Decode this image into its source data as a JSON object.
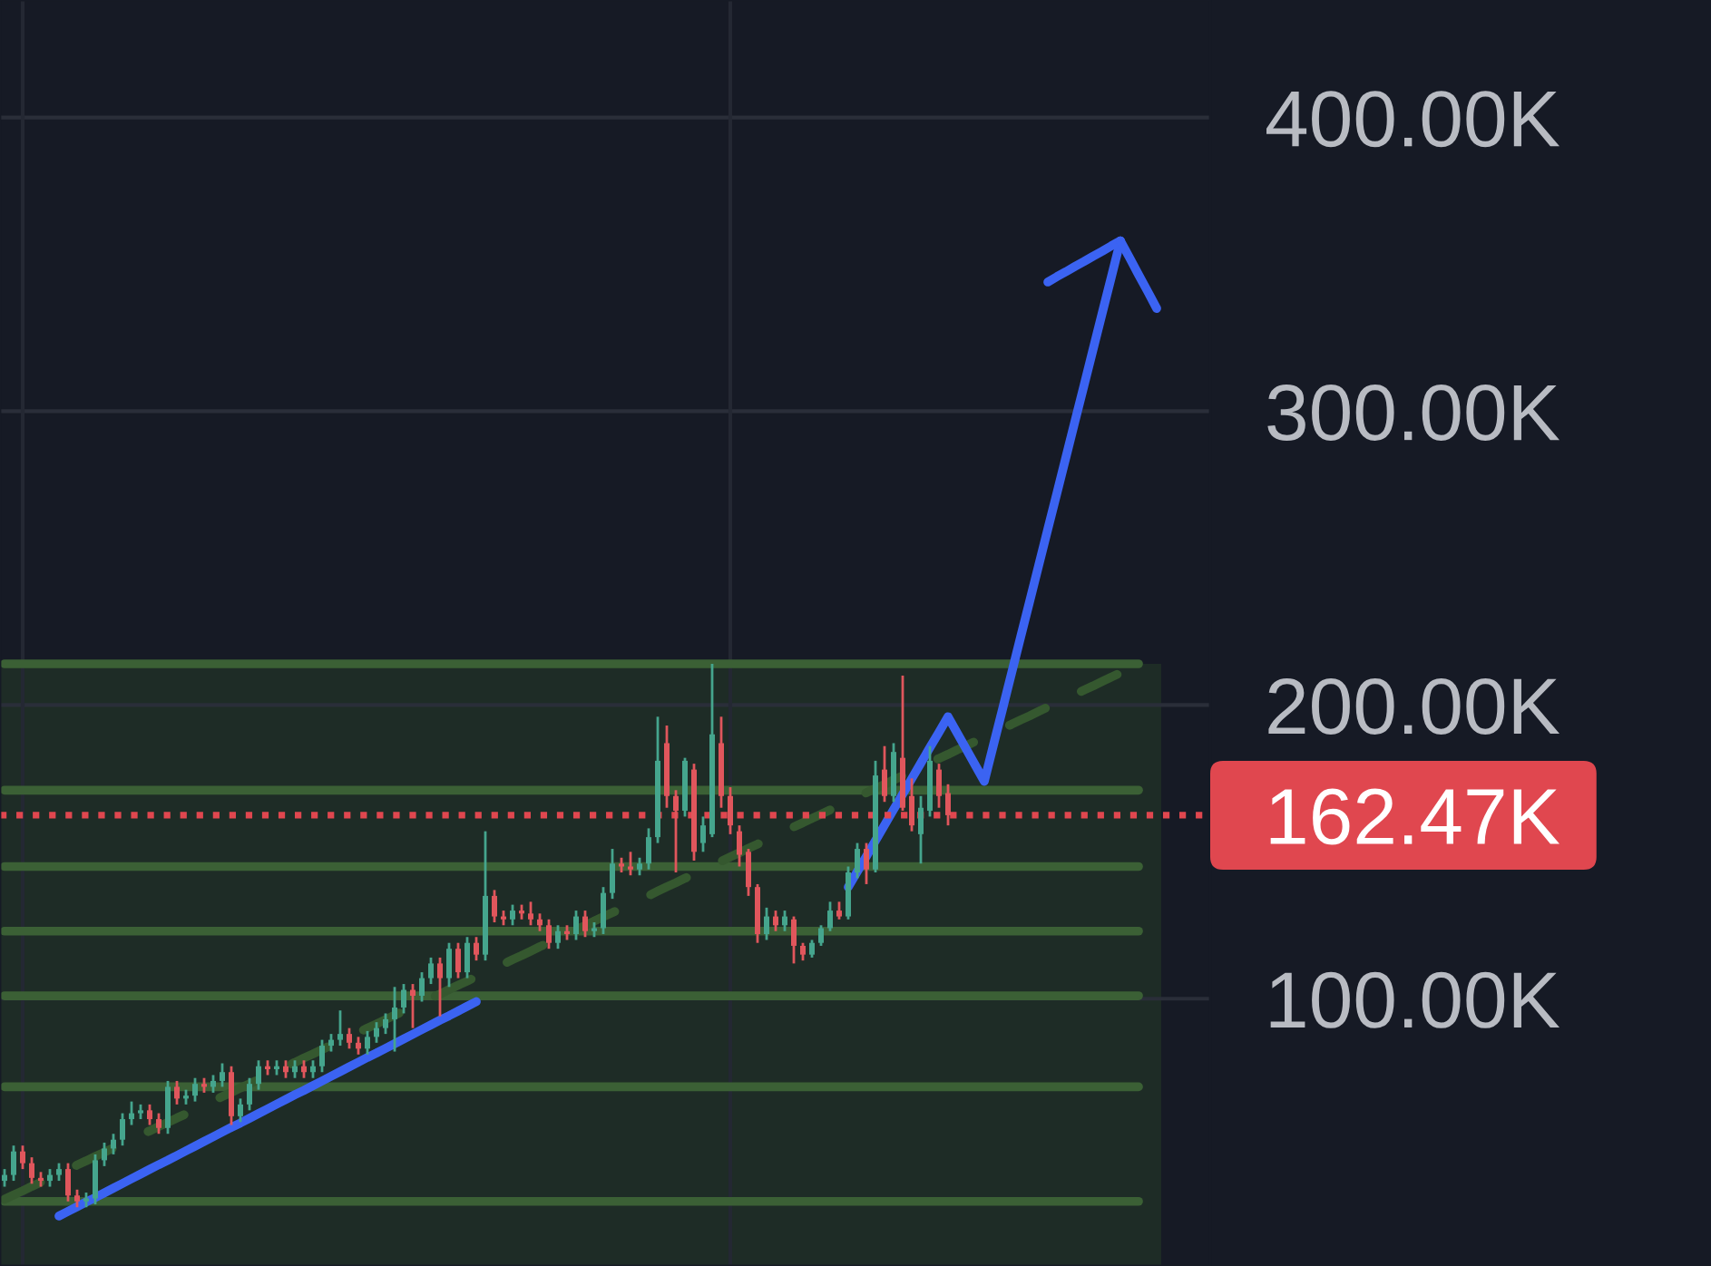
{
  "chart_data": {
    "type": "candlestick",
    "categories": [
      null,
      null,
      null,
      null,
      null,
      null,
      null,
      null,
      null,
      null,
      null,
      null,
      null,
      null,
      null,
      null,
      null,
      null,
      null,
      null,
      null,
      null,
      null,
      null,
      null,
      null,
      null,
      null,
      null,
      null,
      null,
      null,
      null,
      null,
      null,
      null,
      null,
      null,
      null,
      null,
      null,
      null,
      null,
      null,
      null,
      null,
      null,
      null,
      null,
      null,
      null,
      null,
      null,
      null,
      null,
      null,
      null,
      null,
      null,
      null,
      null,
      null,
      null,
      null,
      null,
      null,
      null,
      null,
      null,
      null,
      null,
      null,
      null,
      null,
      null,
      null,
      null,
      null,
      null,
      null,
      null,
      null,
      null,
      null,
      null,
      null,
      null,
      null,
      null,
      null,
      null,
      null,
      null,
      null,
      null,
      null,
      null,
      null,
      null,
      null,
      null,
      null,
      null,
      null,
      null,
      null,
      null,
      null,
      null,
      null,
      null,
      null,
      null,
      null,
      null,
      null,
      null,
      null,
      null,
      null,
      null,
      null,
      null,
      null,
      null,
      null,
      null,
      null
    ],
    "ohlc": [
      [
        38,
        42,
        36,
        40
      ],
      [
        40,
        50,
        38,
        48
      ],
      [
        48,
        50,
        42,
        44
      ],
      [
        44,
        46,
        37,
        39
      ],
      [
        39,
        41,
        36,
        38
      ],
      [
        38,
        42,
        36,
        40
      ],
      [
        40,
        44,
        38,
        42
      ],
      [
        42,
        44,
        31,
        33
      ],
      [
        33,
        35,
        29,
        31
      ],
      [
        31,
        34,
        29,
        32
      ],
      [
        32,
        47,
        30,
        45
      ],
      [
        45,
        51,
        43,
        49
      ],
      [
        49,
        54,
        47,
        52
      ],
      [
        52,
        61,
        50,
        59
      ],
      [
        59,
        65,
        57,
        61
      ],
      [
        61,
        64,
        59,
        62
      ],
      [
        62,
        64,
        57,
        59
      ],
      [
        59,
        61,
        54,
        56
      ],
      [
        56,
        72,
        54,
        70
      ],
      [
        70,
        72,
        64,
        66
      ],
      [
        66,
        69,
        64,
        67
      ],
      [
        67,
        73,
        65,
        71
      ],
      [
        71,
        73,
        68,
        70
      ],
      [
        70,
        74,
        68,
        72
      ],
      [
        72,
        78,
        70,
        75
      ],
      [
        75,
        77,
        57,
        60
      ],
      [
        60,
        66,
        58,
        64
      ],
      [
        64,
        73,
        62,
        71
      ],
      [
        71,
        79,
        69,
        77
      ],
      [
        77,
        79,
        74,
        76
      ],
      [
        76,
        79,
        74,
        77
      ],
      [
        77,
        79,
        73,
        75
      ],
      [
        75,
        79,
        73,
        77
      ],
      [
        77,
        79,
        73,
        75
      ],
      [
        75,
        79,
        73,
        77
      ],
      [
        77,
        86,
        75,
        84
      ],
      [
        84,
        88,
        82,
        86
      ],
      [
        86,
        96,
        84,
        88
      ],
      [
        88,
        90,
        83,
        85
      ],
      [
        85,
        87,
        81,
        83
      ],
      [
        83,
        89,
        81,
        87
      ],
      [
        87,
        92,
        85,
        90
      ],
      [
        90,
        95,
        88,
        93
      ],
      [
        93,
        104,
        82,
        97
      ],
      [
        97,
        105,
        95,
        103
      ],
      [
        103,
        105,
        90,
        101
      ],
      [
        101,
        109,
        99,
        107
      ],
      [
        107,
        114,
        105,
        112
      ],
      [
        112,
        114,
        94,
        107
      ],
      [
        107,
        119,
        104,
        117
      ],
      [
        117,
        119,
        107,
        109
      ],
      [
        109,
        121,
        107,
        119
      ],
      [
        119,
        121,
        113,
        115
      ],
      [
        115,
        157,
        113,
        135
      ],
      [
        135,
        137,
        126,
        128
      ],
      [
        128,
        130,
        125,
        127
      ],
      [
        127,
        132,
        125,
        130
      ],
      [
        130,
        132,
        127,
        129
      ],
      [
        129,
        133,
        125,
        127
      ],
      [
        127,
        129,
        123,
        125
      ],
      [
        125,
        127,
        117,
        119
      ],
      [
        119,
        125,
        117,
        123
      ],
      [
        123,
        125,
        120,
        122
      ],
      [
        122,
        130,
        120,
        128
      ],
      [
        128,
        130,
        121,
        123
      ],
      [
        123,
        126,
        121,
        124
      ],
      [
        124,
        138,
        122,
        136
      ],
      [
        136,
        151,
        134,
        146
      ],
      [
        146,
        148,
        143,
        145
      ],
      [
        145,
        150,
        142,
        144
      ],
      [
        144,
        148,
        142,
        146
      ],
      [
        146,
        158,
        144,
        155
      ],
      [
        155,
        196,
        153,
        181
      ],
      [
        187,
        193,
        165,
        169
      ],
      [
        169,
        171,
        143,
        164
      ],
      [
        164,
        182,
        162,
        181
      ],
      [
        178,
        180,
        147,
        150
      ],
      [
        153,
        162,
        150,
        159
      ],
      [
        156,
        214,
        155,
        190
      ],
      [
        187,
        196,
        165,
        169
      ],
      [
        169,
        172,
        156,
        159
      ],
      [
        157,
        159,
        145,
        149
      ],
      [
        150,
        151,
        135,
        138
      ],
      [
        138,
        139,
        119,
        122
      ],
      [
        122,
        131,
        120,
        128
      ],
      [
        128,
        130,
        123,
        125
      ],
      [
        125,
        130,
        123,
        128
      ],
      [
        127,
        128,
        112,
        118
      ],
      [
        118,
        119,
        113,
        115
      ],
      [
        115,
        120,
        114,
        119
      ],
      [
        119,
        125,
        118,
        124
      ],
      [
        124,
        133,
        123,
        130
      ],
      [
        130,
        133,
        127,
        128
      ],
      [
        128,
        145,
        127,
        143
      ],
      [
        143,
        153,
        141,
        151
      ],
      [
        151,
        153,
        139,
        144
      ],
      [
        144,
        181,
        143,
        176
      ],
      [
        178,
        186,
        167,
        169
      ],
      [
        169,
        187,
        167,
        184
      ],
      [
        182,
        210,
        164,
        165
      ],
      [
        169,
        175,
        157,
        159
      ],
      [
        156,
        169,
        146,
        165
      ],
      [
        164,
        186,
        162,
        181
      ],
      [
        178,
        180,
        165,
        169
      ],
      [
        170,
        173,
        159,
        162.47
      ],
      null,
      null,
      null,
      null,
      null,
      null,
      null,
      null,
      null,
      null,
      null,
      null,
      null,
      null,
      null,
      null,
      null,
      null,
      null,
      null,
      null,
      null,
      null
    ],
    "colors": [
      "#45a58d",
      "#45a58d",
      "#e0565c",
      "#e0565c",
      "#e0565c",
      "#45a58d",
      "#45a58d",
      "#e0565c",
      "#e0565c",
      "#45a58d",
      "#45a58d",
      "#45a58d",
      "#45a58d",
      "#45a58d",
      "#45a58d",
      "#45a58d",
      "#e0565c",
      "#e0565c",
      "#45a58d",
      "#e0565c",
      "#45a58d",
      "#45a58d",
      "#e0565c",
      "#45a58d",
      "#45a58d",
      "#e0565c",
      "#45a58d",
      "#45a58d",
      "#45a58d",
      "#e0565c",
      "#45a58d",
      "#e0565c",
      "#45a58d",
      "#e0565c",
      "#45a58d",
      "#45a58d",
      "#45a58d",
      "#45a58d",
      "#e0565c",
      "#e0565c",
      "#45a58d",
      "#45a58d",
      "#45a58d",
      "#45a58d",
      "#45a58d",
      "#e0565c",
      "#45a58d",
      "#45a58d",
      "#e0565c",
      "#45a58d",
      "#e0565c",
      "#45a58d",
      "#e0565c",
      "#45a58d",
      "#e0565c",
      "#e0565c",
      "#45a58d",
      "#e0565c",
      "#e0565c",
      "#e0565c",
      "#e0565c",
      "#45a58d",
      "#e0565c",
      "#45a58d",
      "#e0565c",
      "#45a58d",
      "#45a58d",
      "#45a58d",
      "#e0565c",
      "#e0565c",
      "#45a58d",
      "#45a58d",
      "#45a58d",
      "#e0565c",
      "#e0565c",
      "#45a58d",
      "#e0565c",
      "#45a58d",
      "#45a58d",
      "#e0565c",
      "#e0565c",
      "#e0565c",
      "#e0565c",
      "#e0565c",
      "#45a58d",
      "#e0565c",
      "#45a58d",
      "#e0565c",
      "#e0565c",
      "#45a58d",
      "#45a58d",
      "#45a58d",
      "#e0565c",
      "#45a58d",
      "#45a58d",
      "#e0565c",
      "#45a58d",
      "#e0565c",
      "#45a58d",
      "#e0565c",
      "#e0565c",
      "#45a58d",
      "#45a58d",
      "#e0565c",
      "#e0565c",
      null,
      null,
      null,
      null,
      null,
      null,
      null,
      null,
      null,
      null,
      null,
      null,
      null,
      null,
      null,
      null,
      null,
      null,
      null,
      null,
      null,
      null,
      null
    ],
    "series": [
      {
        "type": "line",
        "color": "#3b6035",
        "values": [
          214,
          214,
          214,
          214,
          214,
          214,
          214,
          214,
          214,
          214,
          214,
          214,
          214,
          214,
          214,
          214,
          214,
          214,
          214,
          214,
          214,
          214,
          214,
          214,
          214,
          214,
          214,
          214,
          214,
          214,
          214,
          214,
          214,
          214,
          214,
          214,
          214,
          214,
          214,
          214,
          214,
          214,
          214,
          214,
          214,
          214,
          214,
          214,
          214,
          214,
          214,
          214,
          214,
          214,
          214,
          214,
          214,
          214,
          214,
          214,
          214,
          214,
          214,
          214,
          214,
          214,
          214,
          214,
          214,
          214,
          214,
          214,
          214,
          214,
          214,
          214,
          214,
          214,
          214,
          214,
          214,
          214,
          214,
          214,
          214,
          214,
          214,
          214,
          214,
          214,
          214,
          214,
          214,
          214,
          214,
          214,
          214,
          214,
          214,
          214,
          214,
          214,
          214,
          214,
          214,
          214,
          214,
          214,
          214,
          214,
          214,
          214,
          214,
          214,
          214,
          214,
          214,
          214,
          214,
          214,
          214,
          214,
          214,
          214,
          214,
          214,
          null,
          null
        ]
      },
      {
        "type": "line",
        "color": "#3b6035",
        "values": [
          171,
          171,
          171,
          171,
          171,
          171,
          171,
          171,
          171,
          171,
          171,
          171,
          171,
          171,
          171,
          171,
          171,
          171,
          171,
          171,
          171,
          171,
          171,
          171,
          171,
          171,
          171,
          171,
          171,
          171,
          171,
          171,
          171,
          171,
          171,
          171,
          171,
          171,
          171,
          171,
          171,
          171,
          171,
          171,
          171,
          171,
          171,
          171,
          171,
          171,
          171,
          171,
          171,
          171,
          171,
          171,
          171,
          171,
          171,
          171,
          171,
          171,
          171,
          171,
          171,
          171,
          171,
          171,
          171,
          171,
          171,
          171,
          171,
          171,
          171,
          171,
          171,
          171,
          171,
          171,
          171,
          171,
          171,
          171,
          171,
          171,
          171,
          171,
          171,
          171,
          171,
          171,
          171,
          171,
          171,
          171,
          171,
          171,
          171,
          171,
          171,
          171,
          171,
          171,
          171,
          171,
          171,
          171,
          171,
          171,
          171,
          171,
          171,
          171,
          171,
          171,
          171,
          171,
          171,
          171,
          171,
          171,
          171,
          171,
          171,
          171,
          null,
          null
        ]
      },
      {
        "type": "line",
        "color": "#3b6035",
        "values": [
          145,
          145,
          145,
          145,
          145,
          145,
          145,
          145,
          145,
          145,
          145,
          145,
          145,
          145,
          145,
          145,
          145,
          145,
          145,
          145,
          145,
          145,
          145,
          145,
          145,
          145,
          145,
          145,
          145,
          145,
          145,
          145,
          145,
          145,
          145,
          145,
          145,
          145,
          145,
          145,
          145,
          145,
          145,
          145,
          145,
          145,
          145,
          145,
          145,
          145,
          145,
          145,
          145,
          145,
          145,
          145,
          145,
          145,
          145,
          145,
          145,
          145,
          145,
          145,
          145,
          145,
          145,
          145,
          145,
          145,
          145,
          145,
          145,
          145,
          145,
          145,
          145,
          145,
          145,
          145,
          145,
          145,
          145,
          145,
          145,
          145,
          145,
          145,
          145,
          145,
          145,
          145,
          145,
          145,
          145,
          145,
          145,
          145,
          145,
          145,
          145,
          145,
          145,
          145,
          145,
          145,
          145,
          145,
          145,
          145,
          145,
          145,
          145,
          145,
          145,
          145,
          145,
          145,
          145,
          145,
          145,
          145,
          145,
          145,
          145,
          145,
          null,
          null
        ]
      },
      {
        "type": "line",
        "color": "#3b6035",
        "values": [
          123,
          123,
          123,
          123,
          123,
          123,
          123,
          123,
          123,
          123,
          123,
          123,
          123,
          123,
          123,
          123,
          123,
          123,
          123,
          123,
          123,
          123,
          123,
          123,
          123,
          123,
          123,
          123,
          123,
          123,
          123,
          123,
          123,
          123,
          123,
          123,
          123,
          123,
          123,
          123,
          123,
          123,
          123,
          123,
          123,
          123,
          123,
          123,
          123,
          123,
          123,
          123,
          123,
          123,
          123,
          123,
          123,
          123,
          123,
          123,
          123,
          123,
          123,
          123,
          123,
          123,
          123,
          123,
          123,
          123,
          123,
          123,
          123,
          123,
          123,
          123,
          123,
          123,
          123,
          123,
          123,
          123,
          123,
          123,
          123,
          123,
          123,
          123,
          123,
          123,
          123,
          123,
          123,
          123,
          123,
          123,
          123,
          123,
          123,
          123,
          123,
          123,
          123,
          123,
          123,
          123,
          123,
          123,
          123,
          123,
          123,
          123,
          123,
          123,
          123,
          123,
          123,
          123,
          123,
          123,
          123,
          123,
          123,
          123,
          123,
          123,
          null,
          null
        ]
      },
      {
        "type": "line",
        "color": "#3b6035",
        "values": [
          101,
          101,
          101,
          101,
          101,
          101,
          101,
          101,
          101,
          101,
          101,
          101,
          101,
          101,
          101,
          101,
          101,
          101,
          101,
          101,
          101,
          101,
          101,
          101,
          101,
          101,
          101,
          101,
          101,
          101,
          101,
          101,
          101,
          101,
          101,
          101,
          101,
          101,
          101,
          101,
          101,
          101,
          101,
          101,
          101,
          101,
          101,
          101,
          101,
          101,
          101,
          101,
          101,
          101,
          101,
          101,
          101,
          101,
          101,
          101,
          101,
          101,
          101,
          101,
          101,
          101,
          101,
          101,
          101,
          101,
          101,
          101,
          101,
          101,
          101,
          101,
          101,
          101,
          101,
          101,
          101,
          101,
          101,
          101,
          101,
          101,
          101,
          101,
          101,
          101,
          101,
          101,
          101,
          101,
          101,
          101,
          101,
          101,
          101,
          101,
          101,
          101,
          101,
          101,
          101,
          101,
          101,
          101,
          101,
          101,
          101,
          101,
          101,
          101,
          101,
          101,
          101,
          101,
          101,
          101,
          101,
          101,
          101,
          101,
          101,
          101,
          null,
          null
        ]
      },
      {
        "type": "line",
        "color": "#3b6035",
        "values": [
          70,
          70,
          70,
          70,
          70,
          70,
          70,
          70,
          70,
          70,
          70,
          70,
          70,
          70,
          70,
          70,
          70,
          70,
          70,
          70,
          70,
          70,
          70,
          70,
          70,
          70,
          70,
          70,
          70,
          70,
          70,
          70,
          70,
          70,
          70,
          70,
          70,
          70,
          70,
          70,
          70,
          70,
          70,
          70,
          70,
          70,
          70,
          70,
          70,
          70,
          70,
          70,
          70,
          70,
          70,
          70,
          70,
          70,
          70,
          70,
          70,
          70,
          70,
          70,
          70,
          70,
          70,
          70,
          70,
          70,
          70,
          70,
          70,
          70,
          70,
          70,
          70,
          70,
          70,
          70,
          70,
          70,
          70,
          70,
          70,
          70,
          70,
          70,
          70,
          70,
          70,
          70,
          70,
          70,
          70,
          70,
          70,
          70,
          70,
          70,
          70,
          70,
          70,
          70,
          70,
          70,
          70,
          70,
          70,
          70,
          70,
          70,
          70,
          70,
          70,
          70,
          70,
          70,
          70,
          70,
          70,
          70,
          70,
          70,
          70,
          70,
          null,
          null
        ]
      },
      {
        "type": "line",
        "color": "#3b6035",
        "values": [
          31,
          31,
          31,
          31,
          31,
          31,
          31,
          31,
          31,
          31,
          31,
          31,
          31,
          31,
          31,
          31,
          31,
          31,
          31,
          31,
          31,
          31,
          31,
          31,
          31,
          31,
          31,
          31,
          31,
          31,
          31,
          31,
          31,
          31,
          31,
          31,
          31,
          31,
          31,
          31,
          31,
          31,
          31,
          31,
          31,
          31,
          31,
          31,
          31,
          31,
          31,
          31,
          31,
          31,
          31,
          31,
          31,
          31,
          31,
          31,
          31,
          31,
          31,
          31,
          31,
          31,
          31,
          31,
          31,
          31,
          31,
          31,
          31,
          31,
          31,
          31,
          31,
          31,
          31,
          31,
          31,
          31,
          31,
          31,
          31,
          31,
          31,
          31,
          31,
          31,
          31,
          31,
          31,
          31,
          31,
          31,
          31,
          31,
          31,
          31,
          31,
          31,
          31,
          31,
          31,
          31,
          31,
          31,
          31,
          31,
          31,
          31,
          31,
          31,
          31,
          31,
          31,
          31,
          31,
          31,
          31,
          31,
          31,
          31,
          31,
          31,
          null,
          null
        ]
      },
      {
        "type": "line",
        "color": "#35582f",
        "line_style": "dashed",
        "values": [
          31.7,
          33.2,
          34.6,
          36.1,
          37.5,
          39.0,
          40.4,
          41.9,
          43.4,
          44.8,
          46.3,
          47.7,
          49.2,
          50.6,
          52.1,
          53.6,
          55.0,
          56.5,
          57.9,
          59.4,
          60.8,
          62.3,
          63.8,
          65.2,
          66.7,
          68.1,
          69.6,
          71.0,
          72.5,
          74.0,
          75.4,
          76.9,
          78.3,
          79.8,
          81.2,
          82.7,
          84.2,
          85.6,
          87.1,
          88.5,
          90.0,
          91.4,
          92.9,
          94.4,
          95.8,
          97.3,
          98.7,
          100.2,
          101.6,
          103.1,
          104.6,
          106.0,
          107.5,
          108.9,
          110.4,
          111.8,
          113.3,
          114.7,
          116.2,
          117.7,
          119.1,
          120.6,
          122.0,
          123.5,
          124.9,
          126.4,
          127.9,
          129.3,
          130.8,
          132.2,
          133.7,
          135.1,
          136.6,
          138.1,
          139.5,
          141.0,
          142.4,
          143.9,
          145.3,
          146.8,
          148.3,
          149.7,
          151.2,
          152.6,
          154.1,
          155.5,
          157.0,
          158.5,
          159.9,
          161.4,
          162.8,
          164.3,
          165.7,
          167.2,
          168.7,
          170.1,
          171.6,
          173.0,
          174.5,
          175.9,
          177.4,
          178.9,
          180.3,
          181.8,
          183.2,
          184.7,
          186.1,
          187.6,
          189.1,
          190.5,
          192.0,
          193.4,
          194.9,
          196.3,
          197.8,
          199.3,
          200.7,
          202.2,
          203.6,
          205.1,
          206.5,
          208.0,
          209.5,
          210.9,
          212.4,
          213.8,
          null,
          null
        ]
      },
      {
        "type": "line",
        "color": "#3b63f2",
        "values": [
          null,
          null,
          null,
          null,
          null,
          null,
          26.0,
          27.6,
          29.2,
          30.8,
          32.3,
          33.9,
          35.5,
          37.1,
          38.7,
          40.3,
          41.9,
          43.5,
          45.0,
          46.6,
          48.2,
          49.8,
          51.4,
          53.0,
          54.6,
          56.2,
          57.7,
          59.3,
          60.9,
          62.5,
          64.1,
          65.7,
          67.3,
          68.8,
          70.4,
          72.0,
          73.6,
          75.2,
          76.8,
          78.4,
          80.0,
          81.5,
          83.1,
          84.7,
          86.3,
          87.9,
          89.5,
          91.1,
          92.7,
          94.2,
          95.8,
          97.4,
          99.0,
          null,
          null,
          null,
          null,
          null,
          null,
          null,
          null,
          null,
          null,
          null,
          null,
          null,
          null,
          null,
          null,
          null,
          null,
          null,
          null,
          null,
          null,
          null,
          null,
          null,
          null,
          null,
          null,
          null,
          null,
          null,
          null,
          null,
          null,
          null,
          null,
          null,
          null,
          null,
          null,
          null,
          null,
          null,
          null,
          null,
          null,
          null,
          null,
          null,
          null,
          null,
          null,
          null,
          null,
          null,
          null,
          null,
          null,
          null,
          null,
          null,
          null,
          null,
          null,
          null,
          null,
          null,
          null,
          null,
          null,
          null,
          null,
          null,
          null,
          null
        ]
      },
      {
        "type": "line",
        "color": "#3b63f2",
        "values": [
          null,
          null,
          null,
          null,
          null,
          null,
          null,
          null,
          null,
          null,
          null,
          null,
          null,
          null,
          null,
          null,
          null,
          null,
          null,
          null,
          null,
          null,
          null,
          null,
          null,
          null,
          null,
          null,
          null,
          null,
          null,
          null,
          null,
          null,
          null,
          null,
          null,
          null,
          null,
          null,
          null,
          null,
          null,
          null,
          null,
          null,
          null,
          null,
          null,
          null,
          null,
          null,
          null,
          null,
          null,
          null,
          null,
          null,
          null,
          null,
          null,
          null,
          null,
          null,
          null,
          null,
          null,
          null,
          null,
          null,
          null,
          null,
          null,
          null,
          null,
          null,
          null,
          null,
          null,
          null,
          null,
          null,
          null,
          null,
          null,
          null,
          null,
          null,
          null,
          null,
          null,
          null,
          null,
          138.0,
          143.3,
          148.5,
          153.8,
          159.1,
          164.4,
          169.6,
          174.9,
          180.2,
          185.5,
          190.7,
          196.0,
          190.5,
          185.0,
          179.5,
          174.0,
          186.3,
          198.5,
          210.8,
          223.1,
          235.3,
          247.6,
          259.9,
          272.1,
          284.4,
          296.7,
          308.9,
          321.2,
          333.5,
          345.7,
          358.0,
          null,
          null,
          null,
          null
        ]
      },
      {
        "type": "line",
        "color": "#3b63f2",
        "values": [
          null,
          null,
          null,
          null,
          null,
          null,
          null,
          null,
          null,
          null,
          null,
          null,
          null,
          null,
          null,
          null,
          null,
          null,
          null,
          null,
          null,
          null,
          null,
          null,
          null,
          null,
          null,
          null,
          null,
          null,
          null,
          null,
          null,
          null,
          null,
          null,
          null,
          null,
          null,
          null,
          null,
          null,
          null,
          null,
          null,
          null,
          null,
          null,
          null,
          null,
          null,
          null,
          null,
          null,
          null,
          null,
          null,
          null,
          null,
          null,
          null,
          null,
          null,
          null,
          null,
          null,
          null,
          null,
          null,
          null,
          null,
          null,
          null,
          null,
          null,
          null,
          null,
          null,
          null,
          null,
          null,
          null,
          null,
          null,
          null,
          null,
          null,
          null,
          null,
          null,
          null,
          null,
          null,
          null,
          null,
          null,
          null,
          null,
          null,
          null,
          null,
          null,
          null,
          null,
          null,
          null,
          null,
          null,
          null,
          null,
          null,
          null,
          null,
          null,
          null,
          344.0,
          345.8,
          347.5,
          349.3,
          351.0,
          352.8,
          354.5,
          356.3,
          358.0,
          null,
          null,
          null,
          null
        ]
      },
      {
        "type": "line",
        "color": "#3b63f2",
        "values": [
          null,
          null,
          null,
          null,
          null,
          null,
          null,
          null,
          null,
          null,
          null,
          null,
          null,
          null,
          null,
          null,
          null,
          null,
          null,
          null,
          null,
          null,
          null,
          null,
          null,
          null,
          null,
          null,
          null,
          null,
          null,
          null,
          null,
          null,
          null,
          null,
          null,
          null,
          null,
          null,
          null,
          null,
          null,
          null,
          null,
          null,
          null,
          null,
          null,
          null,
          null,
          null,
          null,
          null,
          null,
          null,
          null,
          null,
          null,
          null,
          null,
          null,
          null,
          null,
          null,
          null,
          null,
          null,
          null,
          null,
          null,
          null,
          null,
          null,
          null,
          null,
          null,
          null,
          null,
          null,
          null,
          null,
          null,
          null,
          null,
          null,
          null,
          null,
          null,
          null,
          null,
          null,
          null,
          null,
          null,
          null,
          null,
          null,
          null,
          null,
          null,
          null,
          null,
          null,
          null,
          null,
          null,
          null,
          null,
          null,
          null,
          null,
          null,
          null,
          null,
          null,
          null,
          null,
          null,
          null,
          null,
          null,
          null,
          358.0,
          352.3,
          346.5,
          340.8,
          335.0
        ]
      }
    ],
    "bands": [
      {
        "axis": "y",
        "from": 9,
        "to": 214,
        "color": "#1e2c26"
      }
    ],
    "ylim": [
      9,
      440
    ],
    "yticks": [
      {
        "value": 100,
        "label": "100.00K"
      },
      {
        "value": 200,
        "label": "200.00K"
      },
      {
        "value": 300,
        "label": "300.00K"
      },
      {
        "value": 400,
        "label": "400.00K"
      }
    ],
    "grid": "y",
    "tick_labels": "y",
    "ref_lines": [
      {
        "axis": "y",
        "value": 162.47,
        "label": "162.47K",
        "color": "#e0474f",
        "line_style": "dotted"
      }
    ]
  }
}
